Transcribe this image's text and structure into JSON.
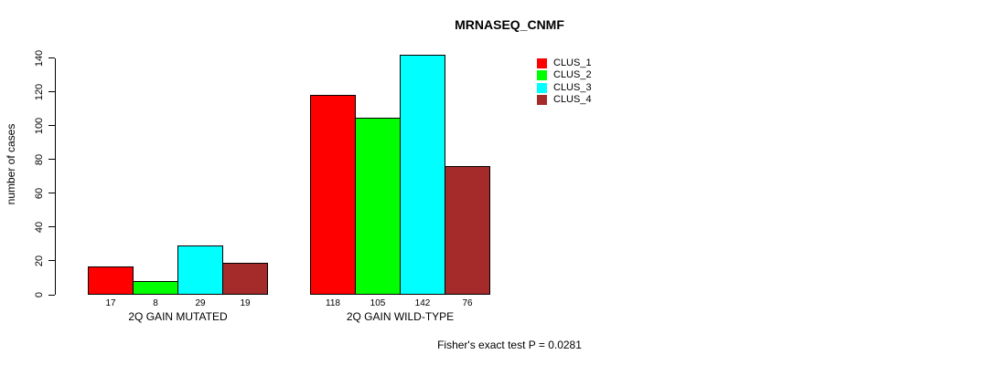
{
  "chart_data": {
    "type": "bar",
    "title": "MRNASEQ_CNMF",
    "ylabel": "number of cases",
    "xlabel": "",
    "ylim": [
      0,
      140
    ],
    "yticks": [
      0,
      20,
      40,
      60,
      80,
      100,
      120,
      140
    ],
    "grid": false,
    "legend_position": "top-right",
    "categories": [
      "2Q GAIN MUTATED",
      "2Q GAIN WILD-TYPE"
    ],
    "series": [
      {
        "name": "CLUS_1",
        "color": "#FF0000",
        "values": [
          17,
          118
        ]
      },
      {
        "name": "CLUS_2",
        "color": "#00FF00",
        "values": [
          8,
          105
        ]
      },
      {
        "name": "CLUS_3",
        "color": "#00FFFF",
        "values": [
          29,
          142
        ]
      },
      {
        "name": "CLUS_4",
        "color": "#A52A2A",
        "values": [
          19,
          76
        ]
      }
    ],
    "bar_value_labels": [
      [
        17,
        8,
        29,
        19
      ],
      [
        118,
        105,
        142,
        76
      ]
    ],
    "annotation": "Fisher's exact test P = 0.0281"
  },
  "colors": {
    "background": "#FFFFFF",
    "axis": "#000000",
    "text": "#000000"
  }
}
